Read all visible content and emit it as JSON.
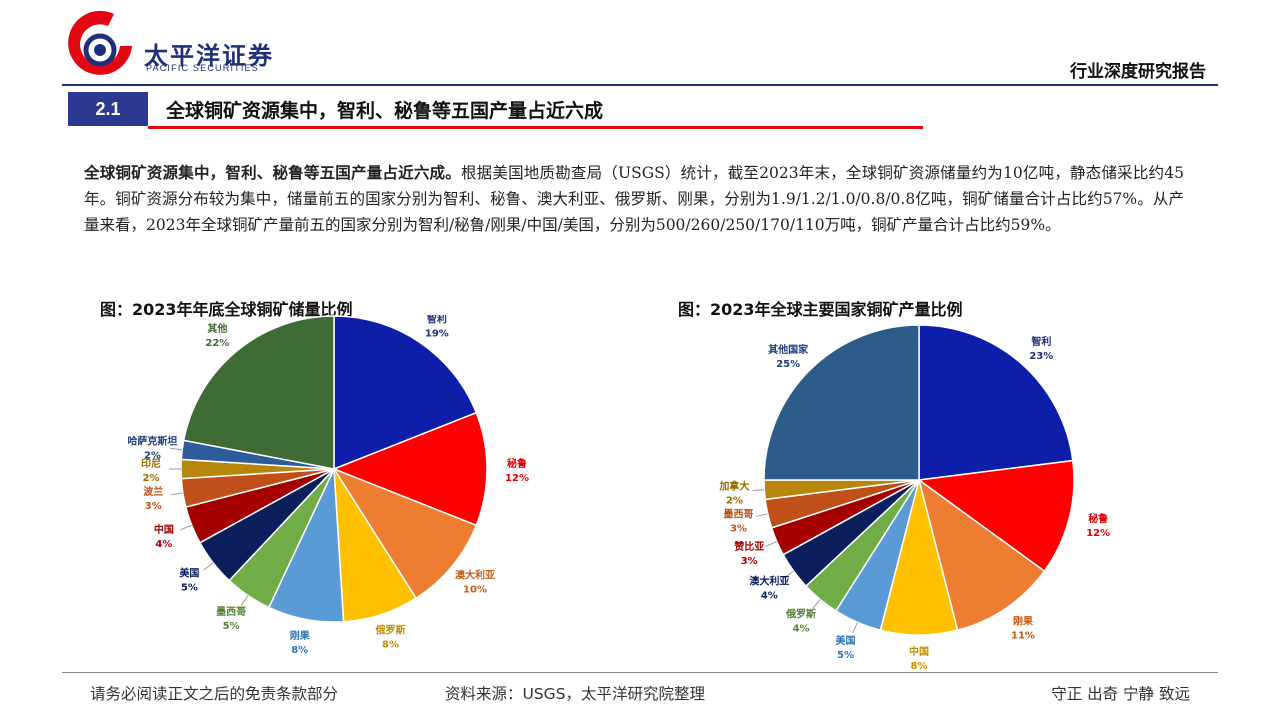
{
  "header": {
    "logo_cn": "太平洋证券",
    "logo_en": "PACIFIC SECURITIES",
    "report_type": "行业深度研究报告"
  },
  "section": {
    "number": "2.1",
    "title": "全球铜矿资源集中，智利、秘鲁等五国产量占近六成"
  },
  "paragraph": {
    "lead": "全球铜矿资源集中，智利、秘鲁等五国产量占近六成。",
    "body": "根据美国地质勘查局（USGS）统计，截至2023年末，全球铜矿资源储量约为10亿吨，静态储采比约45年。铜矿资源分布较为集中，储量前五的国家分别为智利、秘鲁、澳大利亚、俄罗斯、刚果，分别为1.9/1.2/1.0/0.8/0.8亿吨，铜矿储量合计占比约57%。从产量来看，2023年全球铜矿产量前五的国家分别为智利/秘鲁/刚果/中国/美国，分别为500/260/250/170/110万吨，铜矿产量合计占比约59%。"
  },
  "colors": {
    "brand_blue": "#1f2f7a",
    "section_blue": "#2b3990",
    "accent_red": "#e30613"
  },
  "chart_data": [
    {
      "type": "pie",
      "title": "图：2023年年底全球铜矿储量比例",
      "slices": [
        {
          "label": "智利",
          "value": 19,
          "display": "19%",
          "color": "#0d1ea8",
          "label_color": "#1f2f7a"
        },
        {
          "label": "秘鲁",
          "value": 12,
          "display": "12%",
          "color": "#ff0000",
          "label_color": "#e00000"
        },
        {
          "label": "澳大利亚",
          "value": 10,
          "display": "10%",
          "color": "#ed7d31",
          "label_color": "#c55a11"
        },
        {
          "label": "俄罗斯",
          "value": 8,
          "display": "8%",
          "color": "#ffc000",
          "label_color": "#bf9000"
        },
        {
          "label": "刚果",
          "value": 8,
          "display": "8%",
          "color": "#5b9bd5",
          "label_color": "#2e75b6"
        },
        {
          "label": "墨西哥",
          "value": 5,
          "display": "5%",
          "color": "#70ad47",
          "label_color": "#548235"
        },
        {
          "label": "美国",
          "value": 5,
          "display": "5%",
          "color": "#0a1f5c",
          "label_color": "#0a1f5c"
        },
        {
          "label": "中国",
          "value": 4,
          "display": "4%",
          "color": "#a50000",
          "label_color": "#a50000"
        },
        {
          "label": "波兰",
          "value": 3,
          "display": "3%",
          "color": "#c0501a",
          "label_color": "#c0501a"
        },
        {
          "label": "印尼",
          "value": 2,
          "display": "2%",
          "color": "#b8860b",
          "label_color": "#9c6b00"
        },
        {
          "label": "哈萨克斯坦",
          "value": 2,
          "display": "2%",
          "color": "#2e5c9a",
          "label_color": "#1f3f7a"
        },
        {
          "label": "其他",
          "value": 22,
          "display": "22%",
          "color": "#3f6b35",
          "label_color": "#3f6b35"
        }
      ]
    },
    {
      "type": "pie",
      "title": "图：2023年全球主要国家铜矿产量比例",
      "slices": [
        {
          "label": "智利",
          "value": 23,
          "display": "23%",
          "color": "#0d1ea8",
          "label_color": "#1f2f7a"
        },
        {
          "label": "秘鲁",
          "value": 12,
          "display": "12%",
          "color": "#ff0000",
          "label_color": "#e00000"
        },
        {
          "label": "刚果",
          "value": 11,
          "display": "11%",
          "color": "#ed7d31",
          "label_color": "#c55a11"
        },
        {
          "label": "中国",
          "value": 8,
          "display": "8%",
          "color": "#ffc000",
          "label_color": "#bf9000"
        },
        {
          "label": "美国",
          "value": 5,
          "display": "5%",
          "color": "#5b9bd5",
          "label_color": "#2e75b6"
        },
        {
          "label": "俄罗斯",
          "value": 4,
          "display": "4%",
          "color": "#70ad47",
          "label_color": "#548235"
        },
        {
          "label": "澳大利亚",
          "value": 4,
          "display": "4%",
          "color": "#0a1f5c",
          "label_color": "#0a1f5c"
        },
        {
          "label": "赞比亚",
          "value": 3,
          "display": "3%",
          "color": "#a50000",
          "label_color": "#a50000"
        },
        {
          "label": "墨西哥",
          "value": 3,
          "display": "3%",
          "color": "#c0501a",
          "label_color": "#c0501a"
        },
        {
          "label": "加拿大",
          "value": 2,
          "display": "2%",
          "color": "#b8860b",
          "label_color": "#9c6b00"
        },
        {
          "label": "其他国家",
          "value": 25,
          "display": "25%",
          "color": "#2e5c8a",
          "label_color": "#1f3f7a"
        }
      ]
    }
  ],
  "footer": {
    "disclaimer": "请务必阅读正文之后的免责条款部分",
    "source": "资料来源：USGS，太平洋研究院整理",
    "motto": "守正 出奇 宁静 致远"
  }
}
